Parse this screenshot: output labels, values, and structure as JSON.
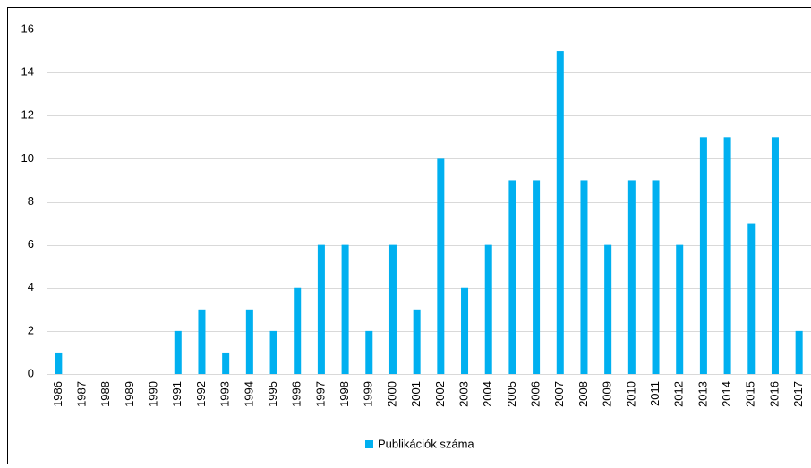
{
  "chart_data": {
    "type": "bar",
    "categories": [
      "1986",
      "1987",
      "1988",
      "1989",
      "1990",
      "1991",
      "1992",
      "1993",
      "1994",
      "1995",
      "1996",
      "1997",
      "1998",
      "1999",
      "2000",
      "2001",
      "2002",
      "2003",
      "2004",
      "2005",
      "2006",
      "2007",
      "2008",
      "2009",
      "2010",
      "2011",
      "2012",
      "2013",
      "2014",
      "2015",
      "2016",
      "2017"
    ],
    "series": [
      {
        "name": "Publikációk száma",
        "color": "#00b0f0",
        "values": [
          1,
          0,
          0,
          0,
          0,
          2,
          3,
          1,
          3,
          2,
          4,
          6,
          6,
          2,
          6,
          3,
          10,
          4,
          6,
          9,
          9,
          15,
          9,
          6,
          9,
          9,
          6,
          11,
          11,
          7,
          11,
          2
        ]
      }
    ],
    "ylim": [
      0,
      16
    ],
    "yticks": [
      0,
      2,
      4,
      6,
      8,
      10,
      12,
      14,
      16
    ],
    "grid": true,
    "legend": "bottom"
  }
}
